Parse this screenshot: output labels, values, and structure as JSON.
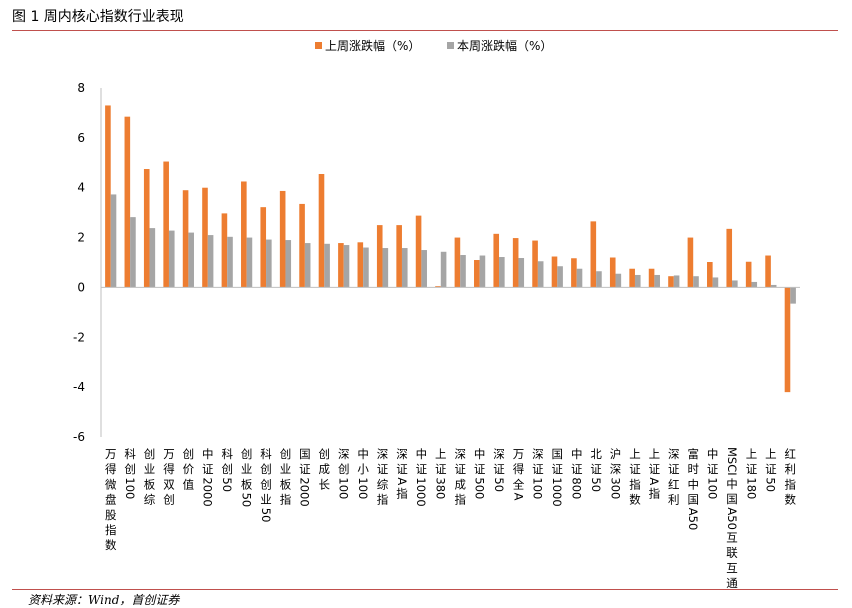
{
  "figure": {
    "title": "图 1  周内核心指数行业表现",
    "source": "资料来源：Wind，首创证券"
  },
  "colors": {
    "series1": "#ed7d31",
    "series2": "#a5a5a5",
    "rule": "#c0504d",
    "axis": "#bfbfbf"
  },
  "chart_data": {
    "type": "bar",
    "title": "",
    "xlabel": "",
    "ylabel": "",
    "ylim": [
      -6,
      8
    ],
    "yticks": [
      -6,
      -4,
      -2,
      0,
      2,
      4,
      6,
      8
    ],
    "ytick_labels": [
      "-6",
      "-4",
      "-2",
      "0",
      "2",
      "4",
      "6",
      "8"
    ],
    "grid": false,
    "legend_position": "top-center",
    "categories": [
      "万得微盘股指数",
      "科创100",
      "创业板综",
      "万得双创",
      "创价值",
      "中证2000",
      "科创50",
      "创业板50",
      "科创创业50",
      "创业板指",
      "国证2000",
      "创成长",
      "深创100",
      "中小100",
      "深证综指",
      "深证A指",
      "中证1000",
      "上证380",
      "深证成指",
      "中证500",
      "深证50",
      "万得全A",
      "深证100",
      "国证1000",
      "中证800",
      "北证50",
      "沪深300",
      "上证指数",
      "上证A指",
      "深证红利",
      "富时中国A50",
      "中证100",
      "MSCI中国A50互联互通",
      "上证180",
      "上证50",
      "红利指数"
    ],
    "series": [
      {
        "name": "上周涨跌幅（%）",
        "values": [
          7.3,
          6.85,
          4.75,
          5.05,
          3.9,
          4.0,
          2.97,
          4.25,
          3.22,
          3.87,
          3.35,
          4.55,
          1.78,
          1.81,
          2.5,
          2.5,
          2.88,
          0.05,
          2.0,
          1.1,
          2.15,
          1.98,
          1.88,
          1.24,
          1.17,
          2.65,
          1.2,
          0.75,
          0.75,
          0.45,
          2.0,
          1.02,
          2.35,
          1.03,
          1.28,
          -4.2
        ]
      },
      {
        "name": "本周涨跌幅（%）",
        "values": [
          3.73,
          2.82,
          2.38,
          2.28,
          2.2,
          2.1,
          2.03,
          2.0,
          1.92,
          1.9,
          1.78,
          1.75,
          1.7,
          1.6,
          1.58,
          1.58,
          1.5,
          1.43,
          1.3,
          1.28,
          1.22,
          1.18,
          1.05,
          0.85,
          0.75,
          0.65,
          0.55,
          0.5,
          0.5,
          0.48,
          0.45,
          0.4,
          0.28,
          0.22,
          0.1,
          -0.65
        ]
      }
    ]
  }
}
